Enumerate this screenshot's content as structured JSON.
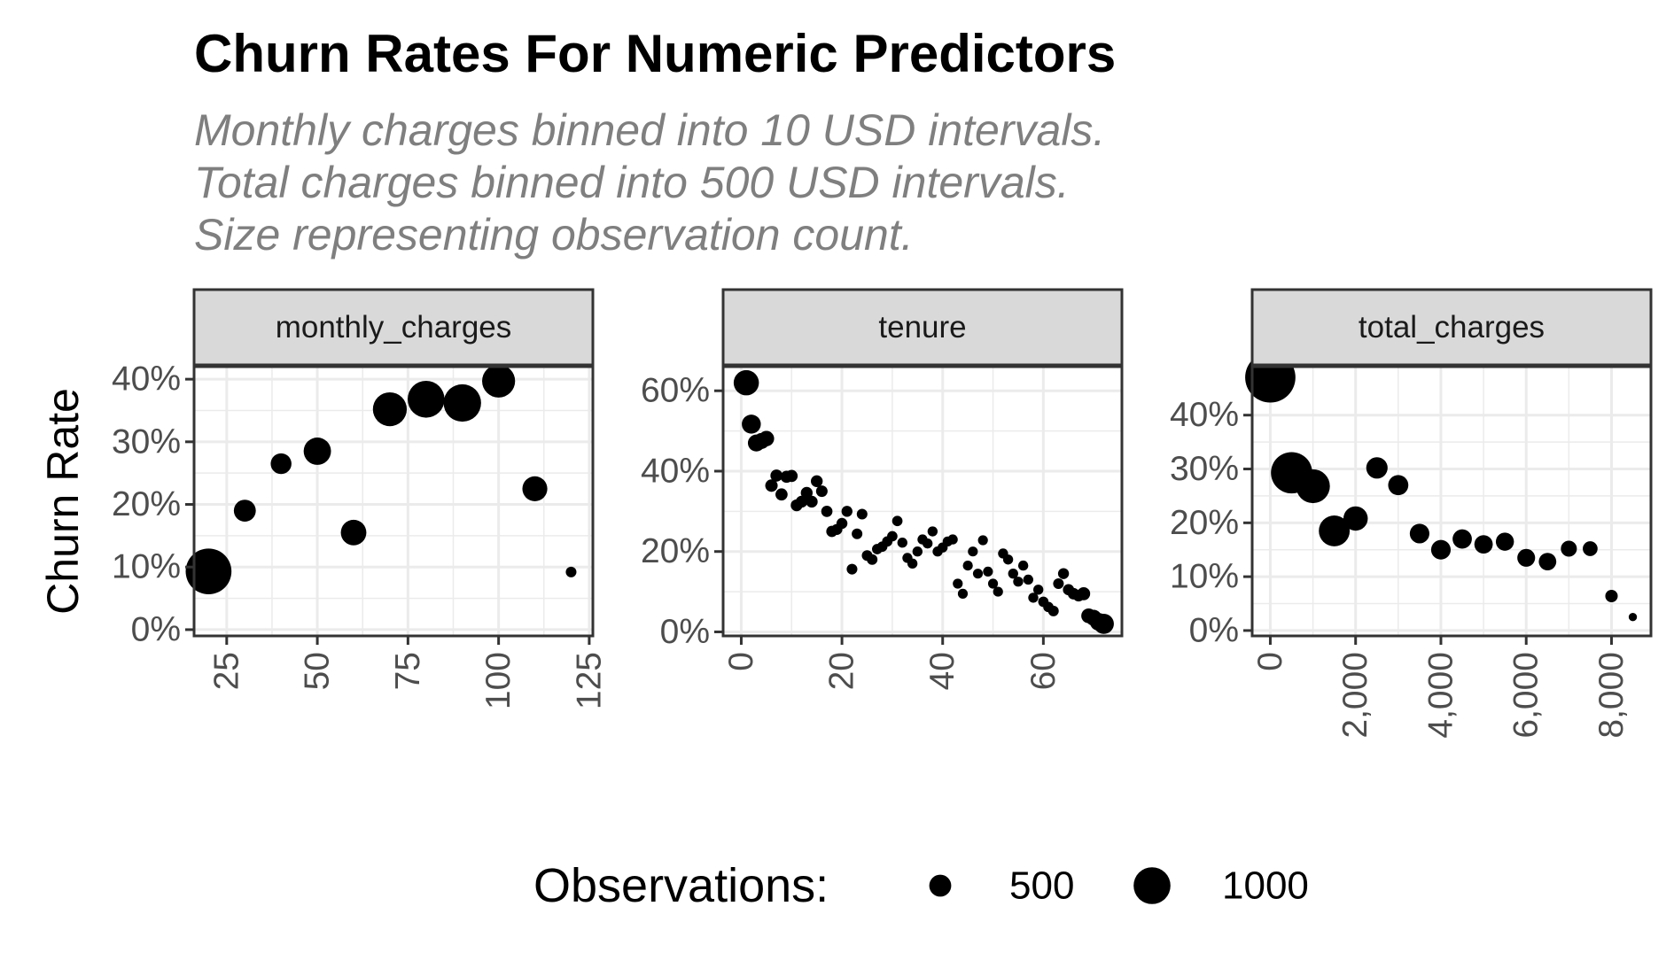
{
  "title": "Churn Rates For Numeric Predictors",
  "subtitle_lines": [
    "Monthly charges binned into 10 USD intervals.",
    "Total charges binned into 500 USD intervals.",
    "Size representing observation count."
  ],
  "colors": {
    "point": "#000000",
    "strip_fill": "#d9d9d9",
    "grid": "#ebebeb",
    "axis_text": "#4d4d4d",
    "panel_border": "#333333",
    "subtitle": "#7f7f7f"
  },
  "chart_data": {
    "type": "scatter",
    "ylabel": "Churn Rate",
    "legend": {
      "title": "Observations:",
      "position": "bottom",
      "items": [
        {
          "label": "500",
          "size": 500
        },
        {
          "label": "1000",
          "size": 1000
        }
      ]
    },
    "panels": [
      {
        "name": "monthly_charges",
        "xlim": [
          16,
          126
        ],
        "ylim": [
          -0.01,
          0.42
        ],
        "x_ticks": [
          25,
          50,
          75,
          100,
          125
        ],
        "x_tick_labels": [
          "25",
          "50",
          "75",
          "100",
          "125"
        ],
        "y_ticks": [
          0,
          0.1,
          0.2,
          0.3,
          0.4
        ],
        "y_tick_labels": [
          "0%",
          "10%",
          "20%",
          "30%",
          "40%"
        ],
        "points": [
          {
            "x": 20,
            "y": 0.093,
            "n": 1300
          },
          {
            "x": 30,
            "y": 0.19,
            "n": 500
          },
          {
            "x": 40,
            "y": 0.265,
            "n": 460
          },
          {
            "x": 50,
            "y": 0.285,
            "n": 680
          },
          {
            "x": 60,
            "y": 0.155,
            "n": 620
          },
          {
            "x": 70,
            "y": 0.352,
            "n": 900
          },
          {
            "x": 80,
            "y": 0.368,
            "n": 1000
          },
          {
            "x": 90,
            "y": 0.362,
            "n": 1020
          },
          {
            "x": 100,
            "y": 0.397,
            "n": 870
          },
          {
            "x": 110,
            "y": 0.225,
            "n": 600
          },
          {
            "x": 120,
            "y": 0.092,
            "n": 120
          }
        ]
      },
      {
        "name": "tenure",
        "xlim": [
          -3.6,
          75.6
        ],
        "ylim": [
          -0.01,
          0.66
        ],
        "x_ticks": [
          0,
          20,
          40,
          60
        ],
        "x_tick_labels": [
          "0",
          "20",
          "40",
          "60"
        ],
        "y_ticks": [
          0,
          0.2,
          0.4,
          0.6
        ],
        "y_tick_labels": [
          "0%",
          "20%",
          "40%",
          "60%"
        ],
        "points": [
          {
            "x": 1,
            "y": 0.62,
            "n": 610
          },
          {
            "x": 2,
            "y": 0.517,
            "n": 400
          },
          {
            "x": 3,
            "y": 0.47,
            "n": 330
          },
          {
            "x": 4,
            "y": 0.475,
            "n": 300
          },
          {
            "x": 5,
            "y": 0.481,
            "n": 280
          },
          {
            "x": 6,
            "y": 0.364,
            "n": 180
          },
          {
            "x": 7,
            "y": 0.389,
            "n": 170
          },
          {
            "x": 8,
            "y": 0.342,
            "n": 170
          },
          {
            "x": 9,
            "y": 0.386,
            "n": 170
          },
          {
            "x": 10,
            "y": 0.388,
            "n": 170
          },
          {
            "x": 11,
            "y": 0.315,
            "n": 160
          },
          {
            "x": 12,
            "y": 0.324,
            "n": 160
          },
          {
            "x": 13,
            "y": 0.346,
            "n": 160
          },
          {
            "x": 14,
            "y": 0.324,
            "n": 160
          },
          {
            "x": 15,
            "y": 0.375,
            "n": 160
          },
          {
            "x": 16,
            "y": 0.35,
            "n": 150
          },
          {
            "x": 17,
            "y": 0.3,
            "n": 140
          },
          {
            "x": 18,
            "y": 0.25,
            "n": 140
          },
          {
            "x": 19,
            "y": 0.255,
            "n": 130
          },
          {
            "x": 20,
            "y": 0.27,
            "n": 130
          },
          {
            "x": 21,
            "y": 0.3,
            "n": 130
          },
          {
            "x": 22,
            "y": 0.156,
            "n": 120
          },
          {
            "x": 23,
            "y": 0.244,
            "n": 120
          },
          {
            "x": 24,
            "y": 0.293,
            "n": 120
          },
          {
            "x": 25,
            "y": 0.19,
            "n": 120
          },
          {
            "x": 26,
            "y": 0.18,
            "n": 120
          },
          {
            "x": 27,
            "y": 0.206,
            "n": 110
          },
          {
            "x": 28,
            "y": 0.212,
            "n": 110
          },
          {
            "x": 29,
            "y": 0.225,
            "n": 110
          },
          {
            "x": 30,
            "y": 0.238,
            "n": 110
          },
          {
            "x": 31,
            "y": 0.276,
            "n": 110
          },
          {
            "x": 32,
            "y": 0.222,
            "n": 100
          },
          {
            "x": 33,
            "y": 0.184,
            "n": 100
          },
          {
            "x": 34,
            "y": 0.17,
            "n": 100
          },
          {
            "x": 35,
            "y": 0.2,
            "n": 100
          },
          {
            "x": 36,
            "y": 0.23,
            "n": 100
          },
          {
            "x": 37,
            "y": 0.22,
            "n": 100
          },
          {
            "x": 38,
            "y": 0.25,
            "n": 100
          },
          {
            "x": 39,
            "y": 0.2,
            "n": 100
          },
          {
            "x": 40,
            "y": 0.21,
            "n": 100
          },
          {
            "x": 41,
            "y": 0.225,
            "n": 100
          },
          {
            "x": 42,
            "y": 0.23,
            "n": 100
          },
          {
            "x": 43,
            "y": 0.12,
            "n": 95
          },
          {
            "x": 44,
            "y": 0.095,
            "n": 95
          },
          {
            "x": 45,
            "y": 0.165,
            "n": 95
          },
          {
            "x": 46,
            "y": 0.2,
            "n": 95
          },
          {
            "x": 47,
            "y": 0.145,
            "n": 95
          },
          {
            "x": 48,
            "y": 0.228,
            "n": 95
          },
          {
            "x": 49,
            "y": 0.15,
            "n": 95
          },
          {
            "x": 50,
            "y": 0.12,
            "n": 95
          },
          {
            "x": 51,
            "y": 0.1,
            "n": 95
          },
          {
            "x": 52,
            "y": 0.195,
            "n": 100
          },
          {
            "x": 53,
            "y": 0.18,
            "n": 100
          },
          {
            "x": 54,
            "y": 0.145,
            "n": 100
          },
          {
            "x": 55,
            "y": 0.125,
            "n": 100
          },
          {
            "x": 56,
            "y": 0.165,
            "n": 100
          },
          {
            "x": 57,
            "y": 0.13,
            "n": 100
          },
          {
            "x": 58,
            "y": 0.085,
            "n": 100
          },
          {
            "x": 59,
            "y": 0.105,
            "n": 100
          },
          {
            "x": 60,
            "y": 0.075,
            "n": 110
          },
          {
            "x": 61,
            "y": 0.062,
            "n": 110
          },
          {
            "x": 62,
            "y": 0.052,
            "n": 120
          },
          {
            "x": 63,
            "y": 0.12,
            "n": 120
          },
          {
            "x": 64,
            "y": 0.145,
            "n": 130
          },
          {
            "x": 65,
            "y": 0.105,
            "n": 140
          },
          {
            "x": 66,
            "y": 0.095,
            "n": 150
          },
          {
            "x": 67,
            "y": 0.09,
            "n": 150
          },
          {
            "x": 68,
            "y": 0.095,
            "n": 200
          },
          {
            "x": 69,
            "y": 0.04,
            "n": 260
          },
          {
            "x": 70,
            "y": 0.035,
            "n": 300
          },
          {
            "x": 71,
            "y": 0.025,
            "n": 360
          },
          {
            "x": 72,
            "y": 0.02,
            "n": 440
          }
        ]
      },
      {
        "name": "total_charges",
        "xlim": [
          -425,
          8925
        ],
        "ylim": [
          -0.01,
          0.49
        ],
        "x_ticks": [
          0,
          2000,
          4000,
          6000,
          8000
        ],
        "x_tick_labels": [
          "0",
          "2,000",
          "4,000",
          "6,000",
          "8,000"
        ],
        "y_ticks": [
          0,
          0.1,
          0.2,
          0.3,
          0.4
        ],
        "y_tick_labels": [
          "0%",
          "10%",
          "20%",
          "30%",
          "40%"
        ],
        "points": [
          {
            "x": 0,
            "y": 0.47,
            "n": 1450
          },
          {
            "x": 500,
            "y": 0.293,
            "n": 1150
          },
          {
            "x": 1000,
            "y": 0.268,
            "n": 900
          },
          {
            "x": 1500,
            "y": 0.185,
            "n": 800
          },
          {
            "x": 2000,
            "y": 0.208,
            "n": 580
          },
          {
            "x": 2500,
            "y": 0.302,
            "n": 480
          },
          {
            "x": 3000,
            "y": 0.27,
            "n": 440
          },
          {
            "x": 3500,
            "y": 0.18,
            "n": 420
          },
          {
            "x": 4000,
            "y": 0.15,
            "n": 420
          },
          {
            "x": 4500,
            "y": 0.17,
            "n": 410
          },
          {
            "x": 5000,
            "y": 0.16,
            "n": 380
          },
          {
            "x": 5500,
            "y": 0.165,
            "n": 370
          },
          {
            "x": 6000,
            "y": 0.135,
            "n": 360
          },
          {
            "x": 6500,
            "y": 0.128,
            "n": 350
          },
          {
            "x": 7000,
            "y": 0.152,
            "n": 300
          },
          {
            "x": 7500,
            "y": 0.152,
            "n": 260
          },
          {
            "x": 8000,
            "y": 0.064,
            "n": 180
          },
          {
            "x": 8500,
            "y": 0.025,
            "n": 40
          }
        ]
      }
    ]
  }
}
